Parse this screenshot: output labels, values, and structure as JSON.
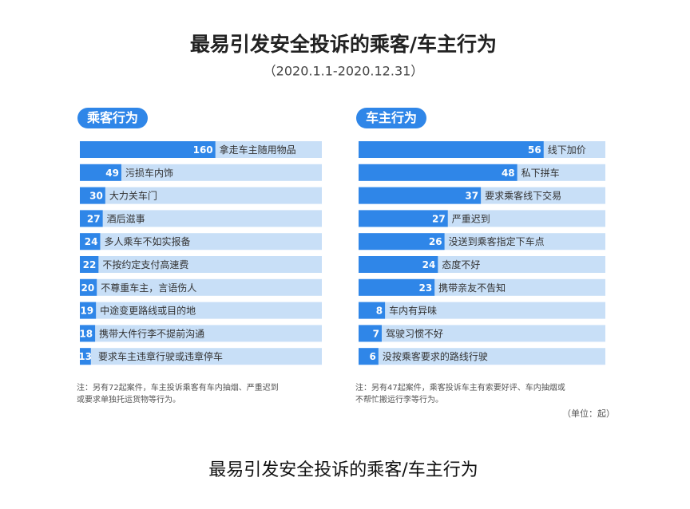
{
  "title": "最易引发安全投诉的乘客/车主行为",
  "subtitle": "（2020.1.1-2020.12.31）",
  "unit": "（单位：起）",
  "caption": "最易引发安全投诉的乘客/车主行为",
  "chart_data": [
    {
      "type": "bar",
      "title": "乘客行为",
      "color": "#2f86e8",
      "categories": [
        "拿走车主随用物品",
        "污损车内饰",
        "大力关车门",
        "酒后滋事",
        "多人乘车不如实报备",
        "不按约定支付高速费",
        "不尊重车主，言语伤人",
        "中途变更路线或目的地",
        "携带大件行李不提前沟通",
        "要求车主违章行驶或违章停车"
      ],
      "values": [
        160,
        49,
        30,
        27,
        24,
        22,
        20,
        19,
        18,
        13
      ],
      "notes": [
        "注：另有72起案件，车主投诉乘客有车内抽烟、严重迟到",
        "或要求单独托运货物等行为。"
      ]
    },
    {
      "type": "bar",
      "title": "车主行为",
      "color": "#2f86e8",
      "categories": [
        "线下加价",
        "私下拼车",
        "要求乘客线下交易",
        "严重迟到",
        "没送到乘客指定下车点",
        "态度不好",
        "携带亲友不告知",
        "车内有异味",
        "驾驶习惯不好",
        "没按乘客要求的路线行驶"
      ],
      "values": [
        56,
        48,
        37,
        27,
        26,
        24,
        23,
        8,
        7,
        6
      ],
      "notes": [
        "注：另有47起案件，乘客投诉车主有索要好评、车内抽烟或",
        "不帮忙搬运行李等行为。"
      ]
    }
  ]
}
